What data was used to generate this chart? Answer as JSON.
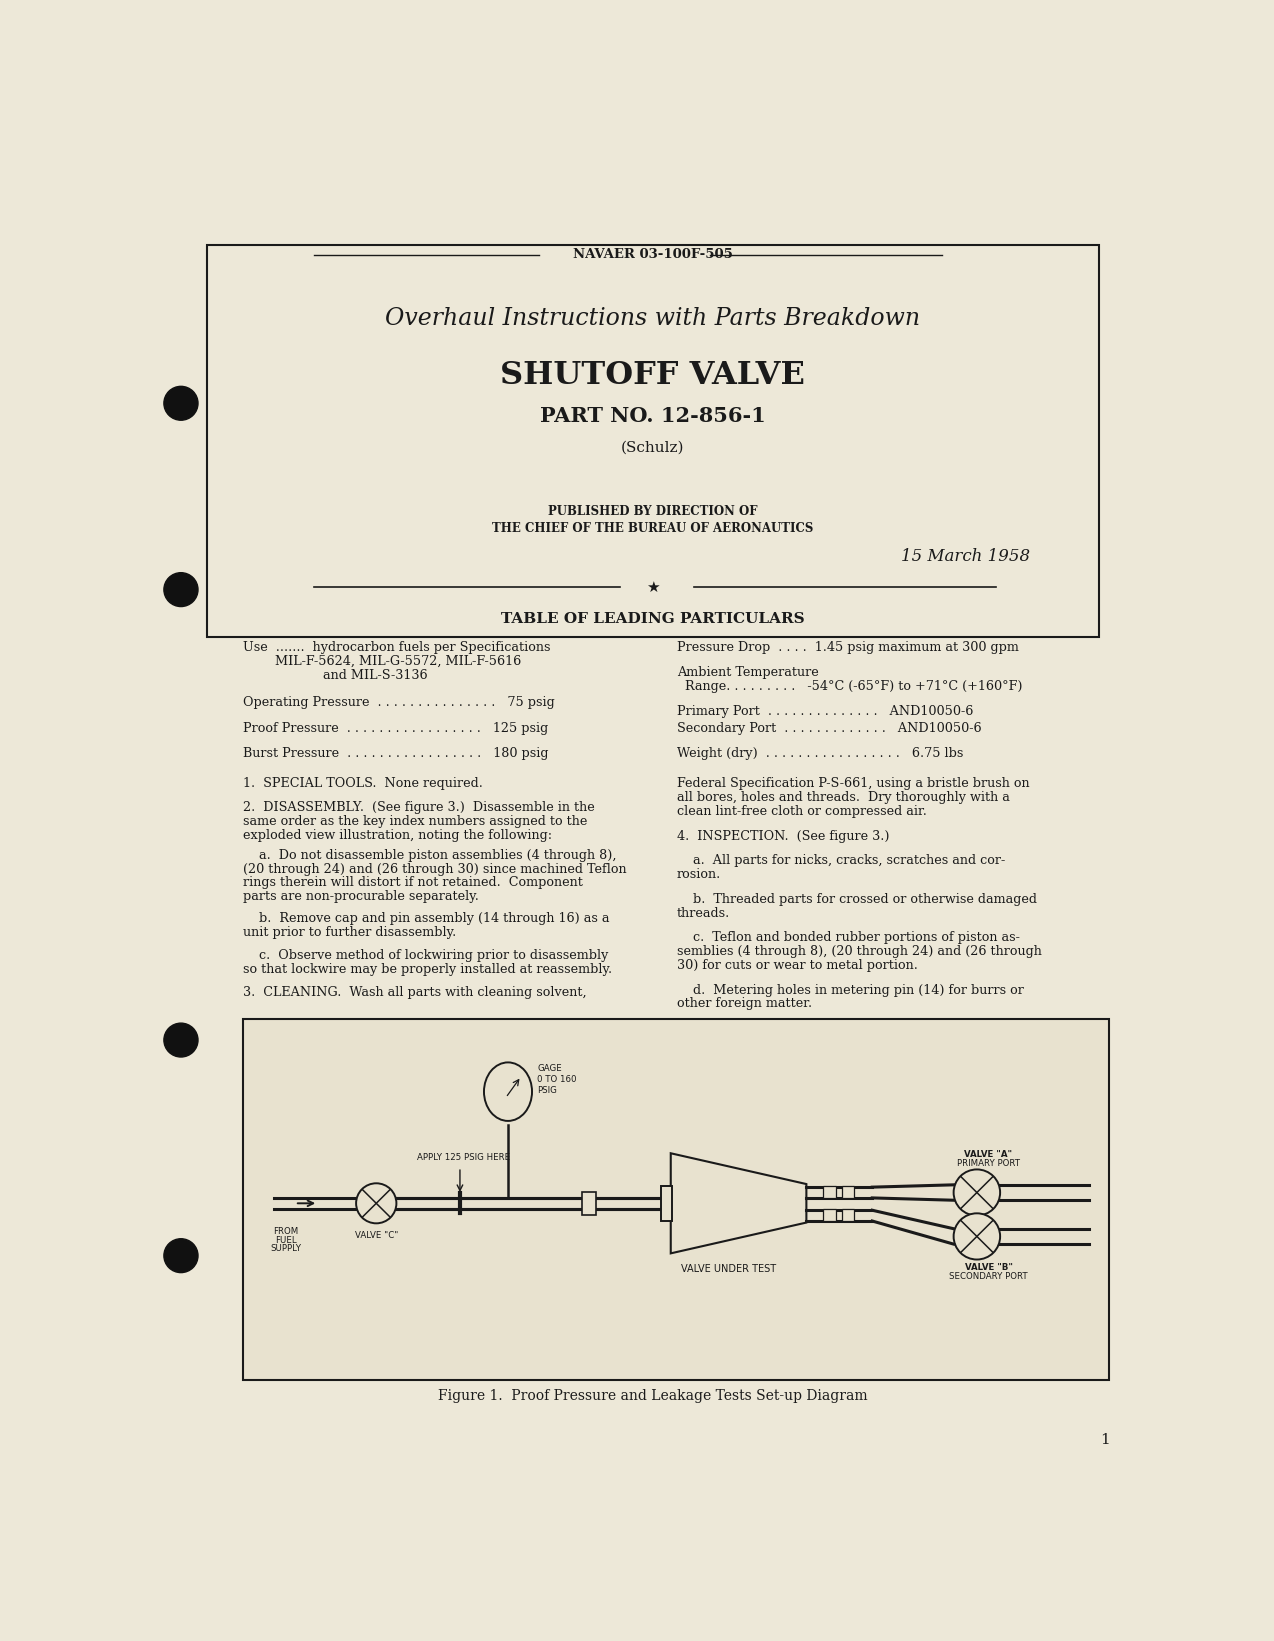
{
  "bg_color": "#ede8d8",
  "text_color": "#1a1a1a",
  "header_text": "NAVAER 03-100F-505",
  "title_line1": "Overhaul Instructions with Parts Breakdown",
  "title_line2": "SHUTOFF VALVE",
  "title_line3": "PART NO. 12-856-1",
  "title_line4": "(Schulz)",
  "published_line1": "PUBLISHED BY DIRECTION OF",
  "published_line2": "THE CHIEF OF THE BUREAU OF AERONAUTICS",
  "date_line": "15 March 1958",
  "table_heading": "TABLE OF LEADING PARTICULARS",
  "figure_caption": "Figure 1.  Proof Pressure and Leakage Tests Set-up Diagram",
  "page_number": "1"
}
